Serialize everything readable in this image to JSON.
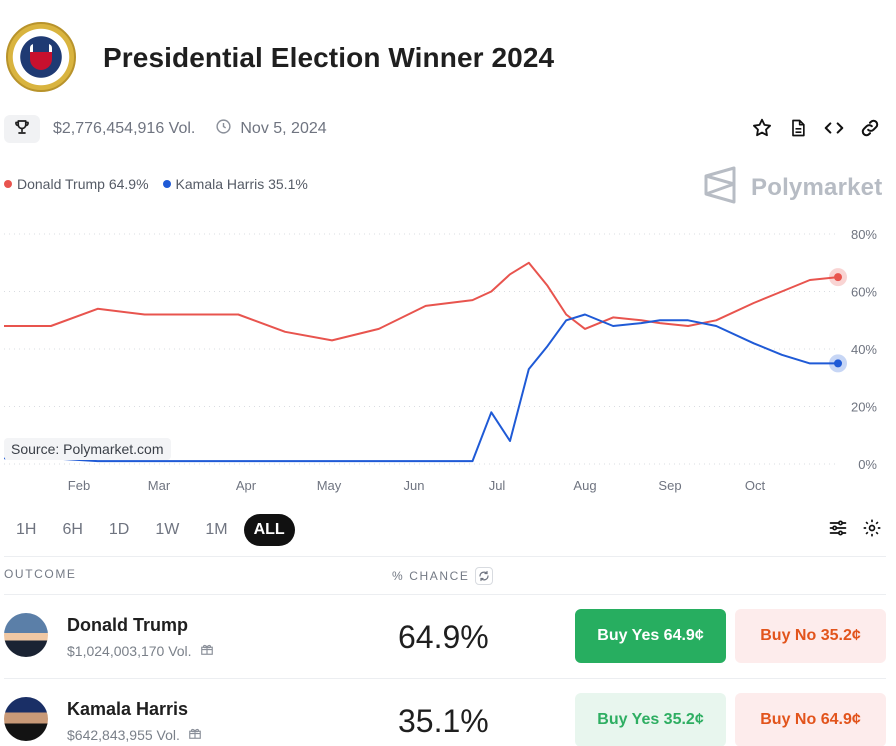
{
  "header": {
    "title": "Presidential Election Winner 2024",
    "volume": "$2,776,454,916 Vol.",
    "date": "Nov 5, 2024"
  },
  "legend": [
    {
      "label": "Donald Trump 64.9%",
      "color": "#e8544e"
    },
    {
      "label": "Kamala Harris 35.1%",
      "color": "#1f5ad6"
    }
  ],
  "brand": "Polymarket",
  "source": "Source: Polymarket.com",
  "chart_data": {
    "type": "line",
    "x_ticks": [
      "Feb",
      "Mar",
      "Apr",
      "May",
      "Jun",
      "Jul",
      "Aug",
      "Sep",
      "Oct"
    ],
    "y_ticks": [
      "80%",
      "60%",
      "40%",
      "20%",
      "0%"
    ],
    "ylim": [
      0,
      80
    ],
    "grid": true,
    "x": [
      0,
      0.5,
      1,
      1.5,
      2,
      2.5,
      3,
      3.5,
      4,
      4.5,
      5,
      5.2,
      5.4,
      5.6,
      5.8,
      6,
      6.2,
      6.5,
      6.8,
      7,
      7.3,
      7.6,
      8,
      8.3,
      8.6,
      8.9
    ],
    "series": [
      {
        "name": "Donald Trump",
        "color": "#e8544e",
        "values": [
          48,
          48,
          54,
          52,
          52,
          52,
          46,
          43,
          47,
          55,
          57,
          60,
          66,
          70,
          62,
          52,
          47,
          51,
          50,
          49,
          48,
          50,
          56,
          60,
          64,
          65
        ]
      },
      {
        "name": "Kamala Harris",
        "color": "#1f5ad6",
        "values": [
          2,
          2,
          1,
          1,
          1,
          1,
          1,
          1,
          1,
          1,
          1,
          18,
          8,
          33,
          41,
          50,
          52,
          48,
          49,
          50,
          50,
          48,
          42,
          38,
          35,
          35
        ]
      }
    ]
  },
  "ranges": {
    "items": [
      "1H",
      "6H",
      "1D",
      "1W",
      "1M",
      "ALL"
    ],
    "active": "ALL"
  },
  "table": {
    "col_outcome": "OUTCOME",
    "col_chance": "% CHANCE",
    "rows": [
      {
        "name": "Donald Trump",
        "volume": "$1,024,003,170 Vol.",
        "chance": "64.9%",
        "buy_yes": "Buy Yes 64.9¢",
        "buy_no": "Buy No 35.2¢"
      },
      {
        "name": "Kamala Harris",
        "volume": "$642,843,955 Vol.",
        "chance": "35.1%",
        "buy_yes": "Buy Yes 35.2¢",
        "buy_no": "Buy No 64.9¢"
      }
    ]
  }
}
